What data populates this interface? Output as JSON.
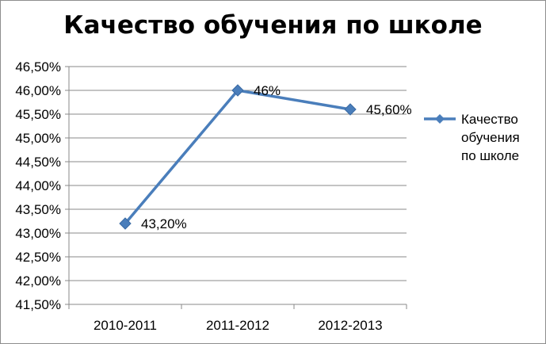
{
  "chart_data": {
    "type": "line",
    "title": "Качество обучения по школе",
    "categories": [
      "2010-2011",
      "2011-2012",
      "2012-2013"
    ],
    "series": [
      {
        "name": "Качество обучения по школе",
        "values": [
          43.2,
          46.0,
          45.6
        ],
        "data_labels": [
          "43,20%",
          "46%",
          "45,60%"
        ],
        "color": "#4a7ebb"
      }
    ],
    "ylim": [
      41.5,
      46.5
    ],
    "ytick_labels": [
      "41,50%",
      "42,00%",
      "42,50%",
      "43,00%",
      "43,50%",
      "44,00%",
      "44,50%",
      "45,00%",
      "45,50%",
      "46,00%",
      "46,50%"
    ],
    "grid": true,
    "legend_position": "right",
    "legend_lines": [
      "Качество",
      "обучения",
      "по школе"
    ],
    "xlabel": "",
    "ylabel": ""
  }
}
